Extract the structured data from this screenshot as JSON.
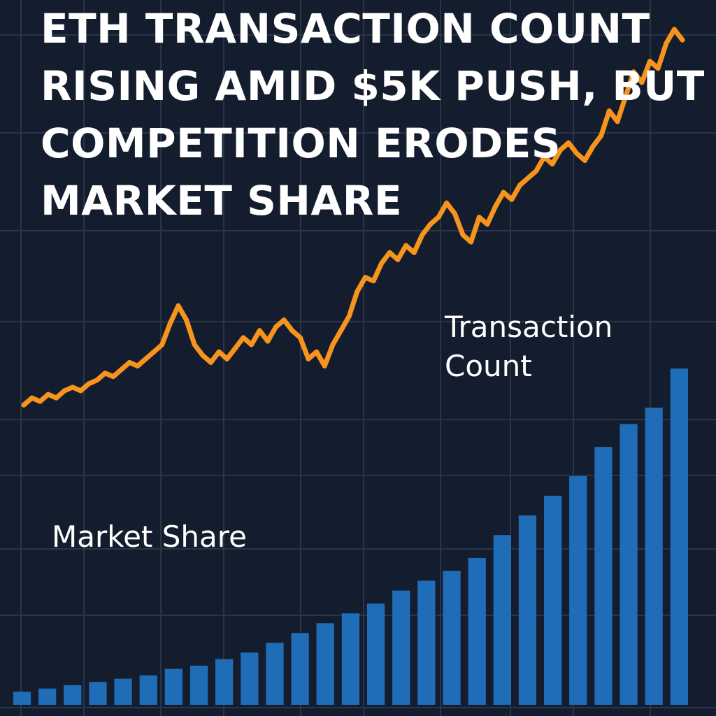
{
  "title_lines": [
    "ETH TRANSACTION COUNT",
    "RISING AMID $5K PUSH, BUT",
    "COMPETITION ERODES",
    "MARKET SHARE"
  ],
  "colors": {
    "background": "#141d2e",
    "grid": "#2a3548",
    "line": "#f7941d",
    "bars": "#1f6cb7",
    "text": "#ffffff"
  },
  "chart_data": [
    {
      "type": "line",
      "title": "ETH TRANSACTION COUNT RISING AMID $5K PUSH, BUT COMPETITION ERODES MARKET SHARE",
      "series": [
        {
          "name": "Transaction Count",
          "values": [
            12,
            14,
            13,
            15,
            14,
            16,
            17,
            16,
            18,
            19,
            21,
            20,
            22,
            24,
            23,
            25,
            27,
            29,
            35,
            40,
            36,
            29,
            26,
            24,
            27,
            25,
            28,
            31,
            29,
            33,
            30,
            34,
            36,
            33,
            31,
            25,
            27,
            23,
            29,
            33,
            37,
            44,
            48,
            47,
            52,
            55,
            53,
            57,
            55,
            60,
            63,
            65,
            69,
            66,
            60,
            58,
            65,
            63,
            68,
            72,
            70,
            74,
            76,
            78,
            82,
            80,
            84,
            86,
            83,
            81,
            85,
            88,
            95,
            92,
            99,
            106,
            103,
            109,
            107,
            114,
            118,
            115
          ]
        }
      ],
      "grid": true,
      "legend": "inline labels"
    },
    {
      "type": "bar",
      "series": [
        {
          "name": "Market Share",
          "values": [
            4,
            5,
            6,
            7,
            8,
            9,
            11,
            12,
            14,
            16,
            19,
            22,
            25,
            28,
            31,
            35,
            38,
            41,
            45,
            52,
            58,
            64,
            70,
            79,
            86,
            91,
            103
          ]
        }
      ],
      "grid": true
    }
  ]
}
